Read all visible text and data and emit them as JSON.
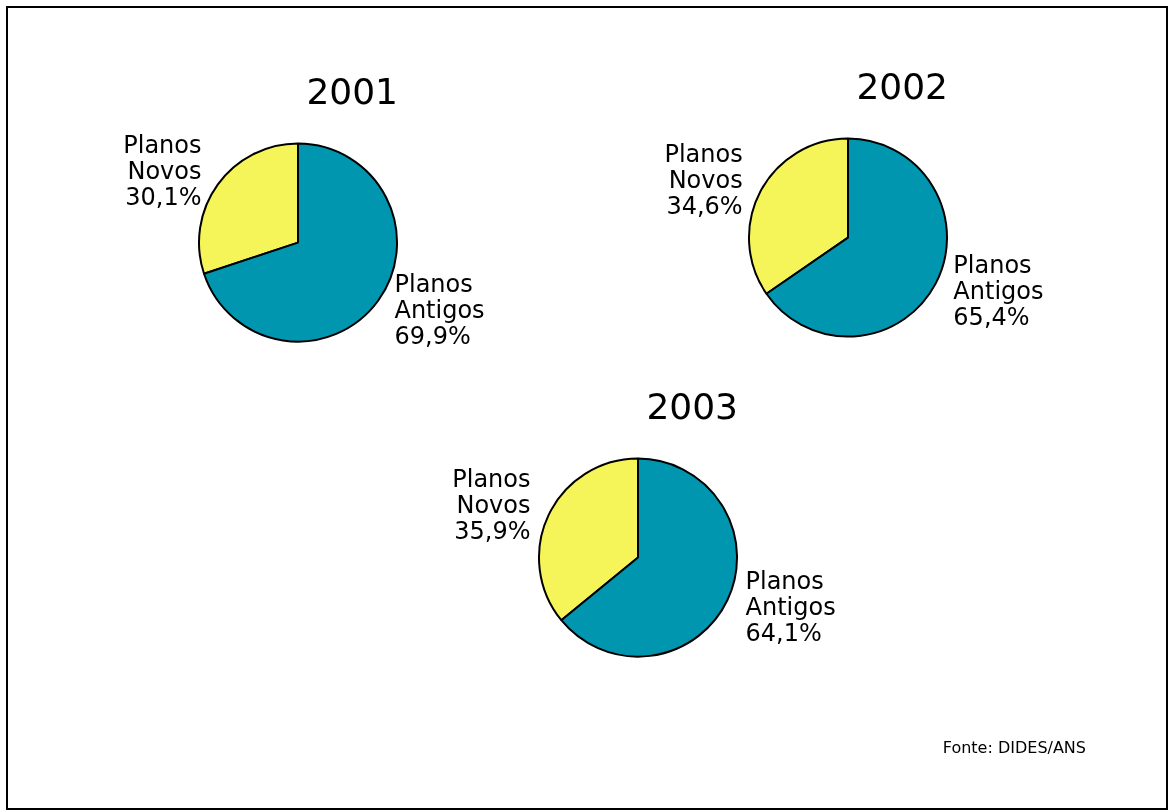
{
  "chart_data": [
    {
      "type": "pie",
      "title": "2001",
      "categories": [
        "Planos Novos",
        "Planos Antigos"
      ],
      "values": [
        30.1,
        69.9
      ],
      "colors": [
        "#f5f55a",
        "#0096b0"
      ],
      "value_labels": [
        "30,1%",
        "69,9%"
      ],
      "legend": false
    },
    {
      "type": "pie",
      "title": "2002",
      "categories": [
        "Planos Novos",
        "Planos Antigos"
      ],
      "values": [
        34.6,
        65.4
      ],
      "colors": [
        "#f5f55a",
        "#0096b0"
      ],
      "value_labels": [
        "34,6%",
        "65,4%"
      ],
      "legend": false
    },
    {
      "type": "pie",
      "title": "2003",
      "categories": [
        "Planos Novos",
        "Planos Antigos"
      ],
      "values": [
        35.9,
        64.1
      ],
      "colors": [
        "#f5f55a",
        "#0096b0"
      ],
      "value_labels": [
        "35,9%",
        "64,1%"
      ],
      "legend": false,
      "annotations": [
        "Fonte: DIDES/ANS"
      ]
    }
  ]
}
